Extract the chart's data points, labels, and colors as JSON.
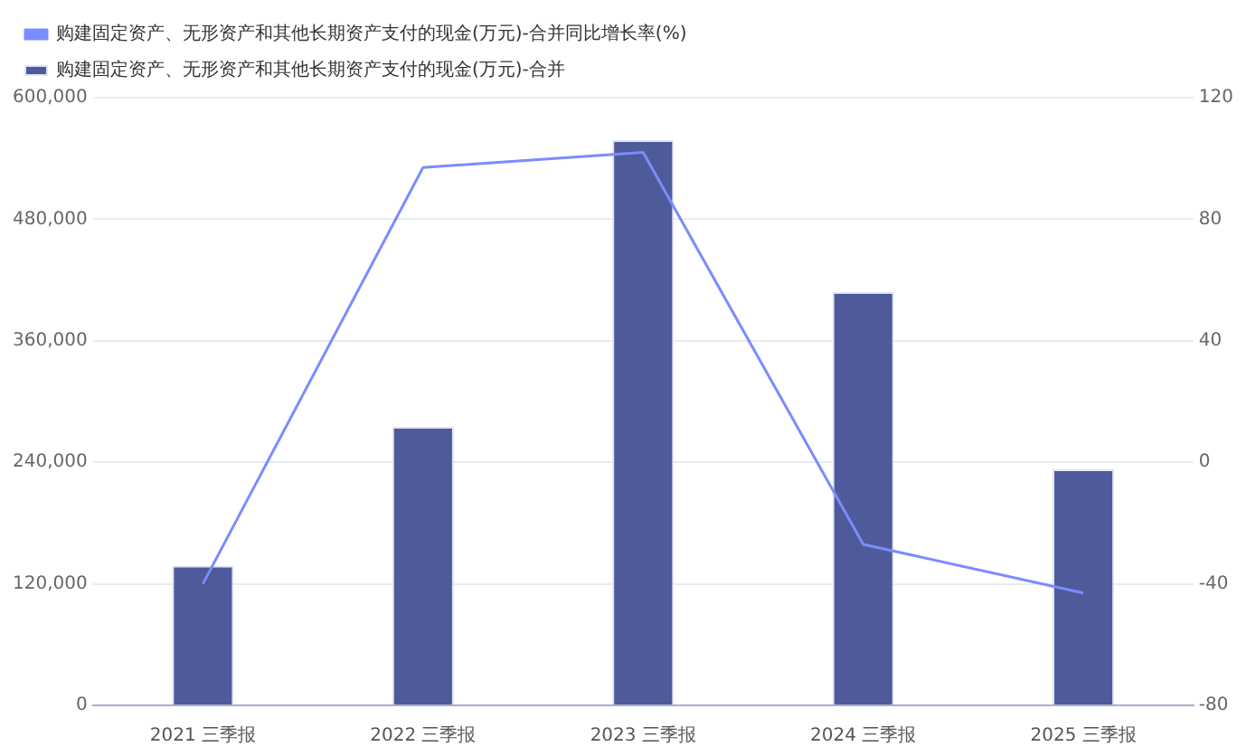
{
  "chart_data": {
    "type": "bar",
    "categories": [
      "2021 三季报",
      "2022 三季报",
      "2023 三季报",
      "2024 三季报",
      "2025 三季报"
    ],
    "series": [
      {
        "name": "购建固定资产、无形资产和其他长期资产支付的现金(万元)-合并",
        "color": "#4e5a99",
        "values": [
          138000,
          275000,
          558000,
          408000,
          233000
        ]
      },
      {
        "name": "购建固定资产、无形资产和其他长期资产支付的现金(万元)-合并同比增长率(%)",
        "type": "line",
        "axis": "y2",
        "color": "#7b8cff",
        "values": [
          -40,
          97,
          102,
          -27,
          -43
        ]
      }
    ],
    "ylim": [
      0,
      600000
    ],
    "yticks": [
      {
        "value": 0,
        "label": "0"
      },
      {
        "value": 120000,
        "label": "120,000"
      },
      {
        "value": 240000,
        "label": "240,000"
      },
      {
        "value": 360000,
        "label": "360,000"
      },
      {
        "value": 480000,
        "label": "480,000"
      },
      {
        "value": 600000,
        "label": "600,000"
      }
    ],
    "y2lim": [
      -80,
      120
    ],
    "y2ticks": [
      -80,
      -40,
      0,
      40,
      80,
      120
    ],
    "grid": "y",
    "legend": "top left",
    "marker": "none"
  }
}
